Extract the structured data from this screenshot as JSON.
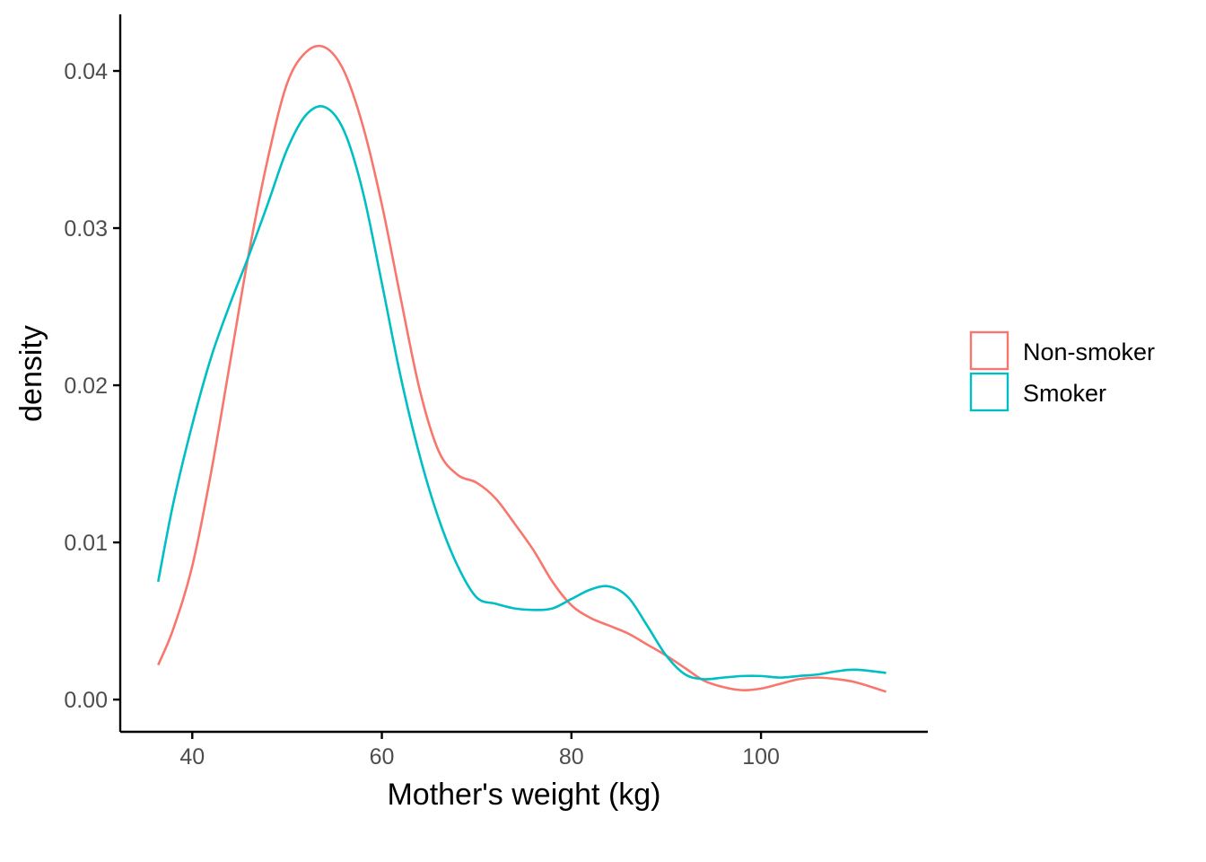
{
  "chart_data": {
    "type": "line",
    "title": "",
    "xlabel": "Mother's weight (kg)",
    "ylabel": "density",
    "xlim": [
      32.4,
      117.6
    ],
    "ylim": [
      -0.00205,
      0.0436
    ],
    "x_ticks": [
      40,
      60,
      80,
      100
    ],
    "x_tick_labels": [
      "40",
      "60",
      "80",
      "100"
    ],
    "y_ticks": [
      0.0,
      0.01,
      0.02,
      0.03,
      0.04
    ],
    "y_tick_labels": [
      "0.00",
      "0.01",
      "0.02",
      "0.03",
      "0.04"
    ],
    "grid": false,
    "legend_position": "right",
    "series": [
      {
        "name": "Non-smoker",
        "color": "#F8766D",
        "x": [
          36.4,
          38,
          40,
          42,
          44,
          46,
          48,
          50,
          52,
          54,
          56,
          58,
          60,
          62,
          64,
          66,
          68,
          70,
          72,
          74,
          76,
          78,
          80,
          82,
          84,
          86,
          88,
          90,
          92,
          94,
          96,
          98,
          100,
          102,
          104,
          106,
          108,
          110,
          113.2
        ],
        "values": [
          0.0022,
          0.0045,
          0.0085,
          0.0145,
          0.0215,
          0.0285,
          0.0345,
          0.0392,
          0.0412,
          0.0415,
          0.04,
          0.0365,
          0.0315,
          0.0255,
          0.0197,
          0.0158,
          0.0143,
          0.0138,
          0.0128,
          0.0112,
          0.0095,
          0.0075,
          0.006,
          0.0052,
          0.0047,
          0.0042,
          0.0035,
          0.0028,
          0.002,
          0.0012,
          0.0008,
          0.0006,
          0.0007,
          0.001,
          0.0013,
          0.0014,
          0.0013,
          0.0011,
          0.0005
        ]
      },
      {
        "name": "Smoker",
        "color": "#00BFC4",
        "x": [
          36.4,
          38,
          40,
          42,
          44,
          46,
          48,
          50,
          52,
          54,
          56,
          58,
          60,
          62,
          64,
          66,
          68,
          70,
          72,
          74,
          76,
          78,
          80,
          82,
          84,
          86,
          88,
          90,
          92,
          94,
          96,
          98,
          100,
          102,
          104,
          106,
          108,
          110,
          113.2
        ],
        "values": [
          0.0075,
          0.0125,
          0.0175,
          0.0218,
          0.0252,
          0.0283,
          0.0316,
          0.035,
          0.0372,
          0.0377,
          0.0362,
          0.0323,
          0.0265,
          0.0205,
          0.0155,
          0.0115,
          0.0085,
          0.0065,
          0.0061,
          0.0058,
          0.0057,
          0.0058,
          0.0064,
          0.007,
          0.0072,
          0.0065,
          0.0047,
          0.0028,
          0.0016,
          0.0013,
          0.0014,
          0.0015,
          0.0015,
          0.0014,
          0.0015,
          0.0016,
          0.0018,
          0.0019,
          0.0017
        ]
      }
    ]
  }
}
